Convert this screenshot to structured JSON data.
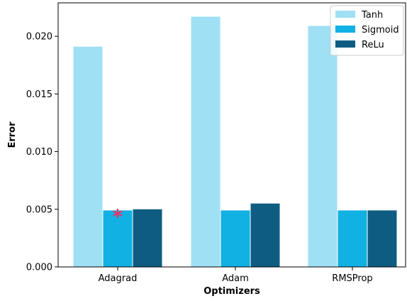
{
  "chart_data": {
    "type": "bar",
    "categories": [
      "Adagrad",
      "Adam",
      "RMSProp"
    ],
    "series": [
      {
        "name": "Tanh",
        "values": [
          0.0191,
          0.0217,
          0.0209
        ],
        "color": "#9fe0f5"
      },
      {
        "name": "Sigmoid",
        "values": [
          0.0049,
          0.0049,
          0.0049
        ],
        "color": "#12b1e3"
      },
      {
        "name": "ReLu",
        "values": [
          0.005,
          0.0055,
          0.0049
        ],
        "color": "#0e5c82"
      }
    ],
    "xlabel": "Optimizers",
    "ylabel": "Error",
    "ylim": [
      0,
      0.0229
    ],
    "yticks": [
      "0.000",
      "0.005",
      "0.010",
      "0.015",
      "0.020"
    ],
    "ytick_values": [
      0,
      0.005,
      0.01,
      0.015,
      0.02
    ],
    "grid": false,
    "legend_position": "top-right",
    "annotation": {
      "text": "*",
      "category": "Adagrad",
      "series": "Sigmoid",
      "color": "#e8336e"
    }
  }
}
